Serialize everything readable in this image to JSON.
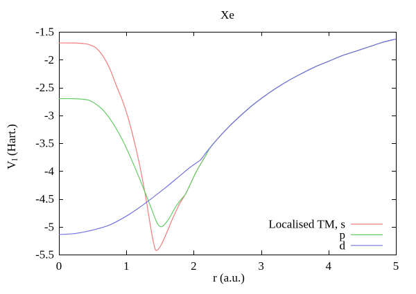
{
  "chart_data": {
    "type": "line",
    "title": "Xe",
    "xlabel": "r (a.u.)",
    "ylabel": "V_l (Hart.)",
    "ylabel_parts": {
      "base": "V",
      "sub": "l",
      "rest": "(Hart.)"
    },
    "xlim": [
      0,
      5
    ],
    "ylim": [
      -5.5,
      -1.5
    ],
    "xticks": [
      0,
      1,
      2,
      3,
      4,
      5
    ],
    "yticks": [
      -5.5,
      -5,
      -4.5,
      -4,
      -3.5,
      -3,
      -2.5,
      -2,
      -1.5
    ],
    "grid": false,
    "legend_position": "inside-bottom-right",
    "series": [
      {
        "name": "Localised TM, s",
        "color": "#f47a7a",
        "points": [
          [
            0,
            -1.7
          ],
          [
            0.2,
            -1.7
          ],
          [
            0.35,
            -1.71
          ],
          [
            0.45,
            -1.73
          ],
          [
            0.55,
            -1.79
          ],
          [
            0.65,
            -1.93
          ],
          [
            0.75,
            -2.15
          ],
          [
            0.85,
            -2.46
          ],
          [
            0.95,
            -2.76
          ],
          [
            1.03,
            -3.06
          ],
          [
            1.11,
            -3.43
          ],
          [
            1.19,
            -3.85
          ],
          [
            1.26,
            -4.28
          ],
          [
            1.31,
            -4.63
          ],
          [
            1.35,
            -4.93
          ],
          [
            1.38,
            -5.14
          ],
          [
            1.41,
            -5.32
          ],
          [
            1.435,
            -5.42
          ],
          [
            1.47,
            -5.41
          ],
          [
            1.52,
            -5.32
          ],
          [
            1.57,
            -5.19
          ],
          [
            1.62,
            -5.05
          ],
          [
            1.67,
            -4.9
          ],
          [
            1.73,
            -4.74
          ],
          [
            1.79,
            -4.59
          ],
          [
            1.84,
            -4.49
          ],
          [
            1.88,
            -4.41
          ],
          [
            1.96,
            -4.21
          ],
          [
            2.03,
            -4.03
          ],
          [
            2.1,
            -3.88
          ],
          [
            2.17,
            -3.74
          ],
          [
            2.25,
            -3.57
          ],
          [
            2.4,
            -3.36
          ],
          [
            2.55,
            -3.17
          ],
          [
            2.7,
            -3.0
          ],
          [
            2.85,
            -2.84
          ],
          [
            3.0,
            -2.7
          ],
          [
            3.2,
            -2.53
          ],
          [
            3.4,
            -2.38
          ],
          [
            3.6,
            -2.25
          ],
          [
            3.8,
            -2.13
          ],
          [
            4.0,
            -2.03
          ],
          [
            4.2,
            -1.93
          ],
          [
            4.4,
            -1.85
          ],
          [
            4.6,
            -1.77
          ],
          [
            4.8,
            -1.69
          ],
          [
            5.0,
            -1.63
          ]
        ]
      },
      {
        "name": "p",
        "color": "#66cc66",
        "points": [
          [
            0,
            -2.7
          ],
          [
            0.2,
            -2.7
          ],
          [
            0.35,
            -2.71
          ],
          [
            0.45,
            -2.73
          ],
          [
            0.55,
            -2.8
          ],
          [
            0.65,
            -2.9
          ],
          [
            0.75,
            -3.05
          ],
          [
            0.85,
            -3.24
          ],
          [
            0.95,
            -3.46
          ],
          [
            1.05,
            -3.72
          ],
          [
            1.15,
            -4.0
          ],
          [
            1.25,
            -4.3
          ],
          [
            1.32,
            -4.51
          ],
          [
            1.38,
            -4.7
          ],
          [
            1.43,
            -4.86
          ],
          [
            1.47,
            -4.96
          ],
          [
            1.51,
            -5.0
          ],
          [
            1.55,
            -4.98
          ],
          [
            1.6,
            -4.91
          ],
          [
            1.65,
            -4.82
          ],
          [
            1.7,
            -4.71
          ],
          [
            1.75,
            -4.61
          ],
          [
            1.8,
            -4.53
          ],
          [
            1.84,
            -4.47
          ],
          [
            1.88,
            -4.41
          ],
          [
            1.96,
            -4.21
          ],
          [
            2.03,
            -4.03
          ],
          [
            2.1,
            -3.88
          ],
          [
            2.17,
            -3.74
          ],
          [
            2.25,
            -3.57
          ],
          [
            2.4,
            -3.36
          ],
          [
            2.55,
            -3.17
          ],
          [
            2.7,
            -3.0
          ],
          [
            2.85,
            -2.84
          ],
          [
            3.0,
            -2.7
          ],
          [
            3.2,
            -2.53
          ],
          [
            3.4,
            -2.38
          ],
          [
            3.6,
            -2.25
          ],
          [
            3.8,
            -2.13
          ],
          [
            4.0,
            -2.03
          ],
          [
            4.2,
            -1.93
          ],
          [
            4.4,
            -1.85
          ],
          [
            4.6,
            -1.77
          ],
          [
            4.8,
            -1.69
          ],
          [
            5.0,
            -1.63
          ]
        ]
      },
      {
        "name": "d",
        "color": "#7272e0",
        "points": [
          [
            0,
            -5.14
          ],
          [
            0.25,
            -5.12
          ],
          [
            0.5,
            -5.06
          ],
          [
            0.75,
            -4.97
          ],
          [
            1.0,
            -4.81
          ],
          [
            1.2,
            -4.65
          ],
          [
            1.4,
            -4.47
          ],
          [
            1.6,
            -4.28
          ],
          [
            1.8,
            -4.08
          ],
          [
            1.95,
            -3.93
          ],
          [
            2.1,
            -3.8
          ],
          [
            2.17,
            -3.69
          ],
          [
            2.25,
            -3.57
          ],
          [
            2.4,
            -3.36
          ],
          [
            2.55,
            -3.17
          ],
          [
            2.7,
            -3.0
          ],
          [
            2.85,
            -2.84
          ],
          [
            3.0,
            -2.7
          ],
          [
            3.2,
            -2.53
          ],
          [
            3.4,
            -2.38
          ],
          [
            3.6,
            -2.25
          ],
          [
            3.8,
            -2.13
          ],
          [
            4.0,
            -2.03
          ],
          [
            4.2,
            -1.93
          ],
          [
            4.4,
            -1.85
          ],
          [
            4.6,
            -1.77
          ],
          [
            4.8,
            -1.69
          ],
          [
            5.0,
            -1.63
          ]
        ]
      }
    ]
  }
}
